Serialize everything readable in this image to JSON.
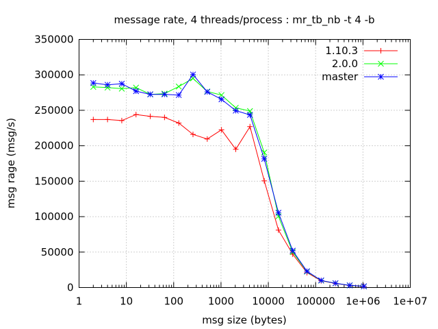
{
  "chart_data": {
    "type": "line",
    "title": "message rate, 4 threads/process : mr_tb_nb -t 4 -b",
    "xlabel": "msg size (bytes)",
    "ylabel": "msg rage (msg/s)",
    "x_scale": "log",
    "xlim": [
      1,
      10000000
    ],
    "ylim": [
      0,
      350000
    ],
    "x_ticks": [
      1,
      10,
      100,
      1000,
      10000,
      100000,
      1000000,
      10000000
    ],
    "x_tick_labels": [
      "1",
      "10",
      "100",
      "1000",
      "10000",
      "100000",
      "1e+06",
      "1e+07"
    ],
    "y_ticks": [
      0,
      50000,
      100000,
      150000,
      200000,
      250000,
      300000,
      350000
    ],
    "y_tick_labels": [
      "0",
      "50000",
      "100000",
      "150000",
      "200000",
      "250000",
      "300000",
      "350000"
    ],
    "grid": true,
    "legend_position": "top-right",
    "x": [
      2,
      4,
      8,
      16,
      32,
      64,
      128,
      256,
      512,
      1024,
      2048,
      4096,
      8192,
      16384,
      32768,
      65536,
      131072,
      262144,
      524288,
      1048576
    ],
    "series": [
      {
        "name": "1.10.3",
        "color": "#ff0000",
        "marker": "plus",
        "values": [
          237000,
          237000,
          235500,
          244000,
          241500,
          240000,
          232000,
          216000,
          209500,
          222500,
          195000,
          227000,
          150500,
          81000,
          47000,
          21000,
          9500,
          5800,
          2900,
          1500
        ]
      },
      {
        "name": "2.0.0",
        "color": "#00ff00",
        "marker": "cross",
        "values": [
          283000,
          282000,
          280500,
          282000,
          272500,
          273500,
          283500,
          295000,
          276500,
          271500,
          253500,
          249000,
          190500,
          100500,
          50000,
          22500,
          9800,
          6000,
          3000,
          1600
        ]
      },
      {
        "name": "master",
        "color": "#0000ff",
        "marker": "star",
        "values": [
          288500,
          286000,
          287500,
          277000,
          272500,
          272500,
          271500,
          300500,
          276000,
          265500,
          249500,
          243500,
          181500,
          105500,
          52000,
          23000,
          10000,
          6100,
          3100,
          1700
        ]
      }
    ]
  }
}
